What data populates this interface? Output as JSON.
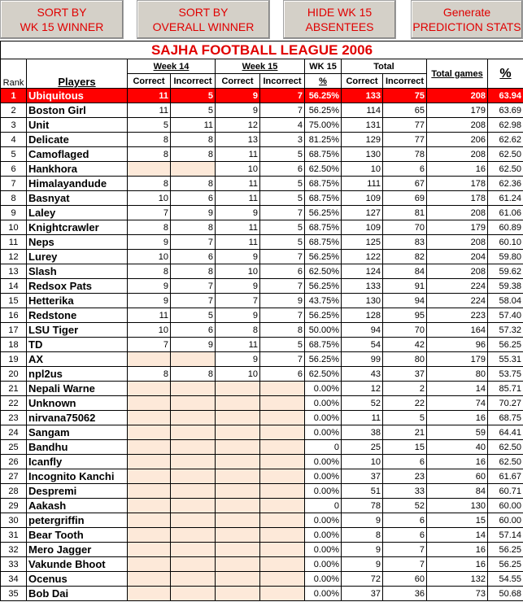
{
  "buttons": [
    {
      "lines": [
        "SORT BY",
        "WK 15 WINNER"
      ]
    },
    {
      "lines": [
        "SORT BY",
        "OVERALL WINNER"
      ]
    },
    {
      "lines": [
        "HIDE WK 15",
        "ABSENTEES"
      ]
    },
    {
      "lines": [
        "Generate",
        "PREDICTION STATS"
      ]
    }
  ],
  "title": "SAJHA FOOTBALL LEAGUE 2006",
  "header": {
    "rank": "Rank",
    "players": "Players",
    "week14": "Week 14",
    "week15": "Week 15",
    "wk15": "WK 15",
    "wk15_pct": "%",
    "total": "Total",
    "total_games": "Total games",
    "pct": "%",
    "correct": [
      "Correct",
      "Correct",
      "Correct"
    ],
    "incorrect": [
      "Incorrect",
      "Incorrect",
      "Incorrect"
    ]
  },
  "table": {
    "rows": [
      [
        "1",
        "Ubiquitous",
        "11",
        "5",
        "9",
        "7",
        "56.25%",
        "133",
        "75",
        "208",
        "63.94"
      ],
      [
        "2",
        "Boston Girl",
        "11",
        "5",
        "9",
        "7",
        "56.25%",
        "114",
        "65",
        "179",
        "63.69"
      ],
      [
        "3",
        "Unit",
        "5",
        "11",
        "12",
        "4",
        "75.00%",
        "131",
        "77",
        "208",
        "62.98"
      ],
      [
        "4",
        "Delicate",
        "8",
        "8",
        "13",
        "3",
        "81.25%",
        "129",
        "77",
        "206",
        "62.62"
      ],
      [
        "5",
        "Camoflaged",
        "8",
        "8",
        "11",
        "5",
        "68.75%",
        "130",
        "78",
        "208",
        "62.50"
      ],
      [
        "6",
        "Hankhora",
        null,
        null,
        "10",
        "6",
        "62.50%",
        "10",
        "6",
        "16",
        "62.50"
      ],
      [
        "7",
        "Himalayandude",
        "8",
        "8",
        "11",
        "5",
        "68.75%",
        "111",
        "67",
        "178",
        "62.36"
      ],
      [
        "8",
        "Basnyat",
        "10",
        "6",
        "11",
        "5",
        "68.75%",
        "109",
        "69",
        "178",
        "61.24"
      ],
      [
        "9",
        "Laley",
        "7",
        "9",
        "9",
        "7",
        "56.25%",
        "127",
        "81",
        "208",
        "61.06"
      ],
      [
        "10",
        "Knightcrawler",
        "8",
        "8",
        "11",
        "5",
        "68.75%",
        "109",
        "70",
        "179",
        "60.89"
      ],
      [
        "11",
        "Neps",
        "9",
        "7",
        "11",
        "5",
        "68.75%",
        "125",
        "83",
        "208",
        "60.10"
      ],
      [
        "12",
        "Lurey",
        "10",
        "6",
        "9",
        "7",
        "56.25%",
        "122",
        "82",
        "204",
        "59.80"
      ],
      [
        "13",
        "Slash",
        "8",
        "8",
        "10",
        "6",
        "62.50%",
        "124",
        "84",
        "208",
        "59.62"
      ],
      [
        "14",
        "Redsox Pats",
        "9",
        "7",
        "9",
        "7",
        "56.25%",
        "133",
        "91",
        "224",
        "59.38"
      ],
      [
        "15",
        "Hetterika",
        "9",
        "7",
        "7",
        "9",
        "43.75%",
        "130",
        "94",
        "224",
        "58.04"
      ],
      [
        "16",
        "Redstone",
        "11",
        "5",
        "9",
        "7",
        "56.25%",
        "128",
        "95",
        "223",
        "57.40"
      ],
      [
        "17",
        "LSU Tiger",
        "10",
        "6",
        "8",
        "8",
        "50.00%",
        "94",
        "70",
        "164",
        "57.32"
      ],
      [
        "18",
        "TD",
        "7",
        "9",
        "11",
        "5",
        "68.75%",
        "54",
        "42",
        "96",
        "56.25"
      ],
      [
        "19",
        "AX",
        null,
        null,
        "9",
        "7",
        "56.25%",
        "99",
        "80",
        "179",
        "55.31"
      ],
      [
        "20",
        "npl2us",
        "8",
        "8",
        "10",
        "6",
        "62.50%",
        "43",
        "37",
        "80",
        "53.75"
      ],
      [
        "21",
        "Nepali Warne",
        null,
        null,
        null,
        null,
        "0.00%",
        "12",
        "2",
        "14",
        "85.71"
      ],
      [
        "22",
        "Unknown",
        null,
        null,
        null,
        null,
        "0.00%",
        "52",
        "22",
        "74",
        "70.27"
      ],
      [
        "23",
        "nirvana75062",
        null,
        null,
        null,
        null,
        "0.00%",
        "11",
        "5",
        "16",
        "68.75"
      ],
      [
        "24",
        "Sangam",
        null,
        null,
        null,
        null,
        "0.00%",
        "38",
        "21",
        "59",
        "64.41"
      ],
      [
        "25",
        "Bandhu",
        null,
        null,
        null,
        null,
        "0",
        "25",
        "15",
        "40",
        "62.50"
      ],
      [
        "26",
        "Icanfly",
        null,
        null,
        null,
        null,
        "0.00%",
        "10",
        "6",
        "16",
        "62.50"
      ],
      [
        "27",
        "Incognito Kanchi",
        null,
        null,
        null,
        null,
        "0.00%",
        "37",
        "23",
        "60",
        "61.67"
      ],
      [
        "28",
        "Despremi",
        null,
        null,
        null,
        null,
        "0.00%",
        "51",
        "33",
        "84",
        "60.71"
      ],
      [
        "29",
        "Aakash",
        null,
        null,
        null,
        null,
        "0",
        "78",
        "52",
        "130",
        "60.00"
      ],
      [
        "30",
        "petergriffin",
        null,
        null,
        null,
        null,
        "0.00%",
        "9",
        "6",
        "15",
        "60.00"
      ],
      [
        "31",
        "Bear Tooth",
        null,
        null,
        null,
        null,
        "0.00%",
        "8",
        "6",
        "14",
        "57.14"
      ],
      [
        "32",
        "Mero Jagger",
        null,
        null,
        null,
        null,
        "0.00%",
        "9",
        "7",
        "16",
        "56.25"
      ],
      [
        "33",
        "Vakunde Bhoot",
        null,
        null,
        null,
        null,
        "0.00%",
        "9",
        "7",
        "16",
        "56.25"
      ],
      [
        "34",
        "Ocenus",
        null,
        null,
        null,
        null,
        "0.00%",
        "72",
        "60",
        "132",
        "54.55"
      ],
      [
        "35",
        "Bob Dai",
        null,
        null,
        null,
        null,
        "0.00%",
        "37",
        "36",
        "73",
        "50.68"
      ]
    ]
  }
}
